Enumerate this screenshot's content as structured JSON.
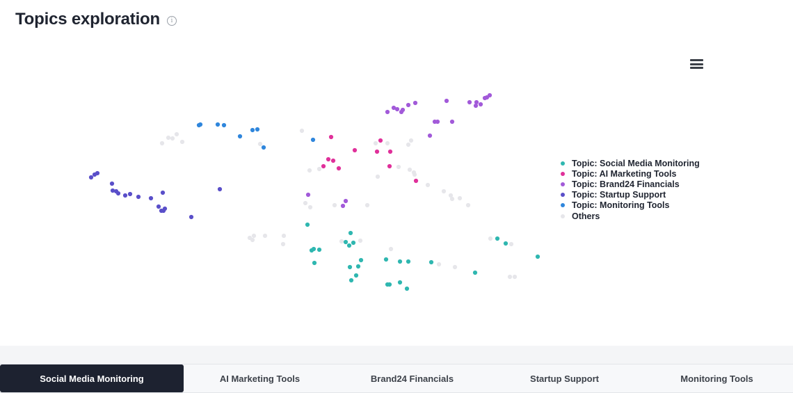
{
  "header": {
    "title": "Topics exploration",
    "info_icon": "info-icon"
  },
  "toolbar": {
    "menu_icon": "hamburger-menu-icon"
  },
  "tabs": [
    {
      "label": "Social Media Monitoring",
      "active": true
    },
    {
      "label": "AI Marketing Tools",
      "active": false
    },
    {
      "label": "Brand24 Financials",
      "active": false
    },
    {
      "label": "Startup Support",
      "active": false
    },
    {
      "label": "Monitoring Tools",
      "active": false
    }
  ],
  "chart_data": {
    "type": "scatter",
    "title": "",
    "xlabel": "",
    "ylabel": "",
    "grid": false,
    "axes_visible": false,
    "legend_position": "right",
    "series": [
      {
        "name": "Topic: Social Media Monitoring",
        "color": "#2fb7b0",
        "points": [
          [
            442,
            323
          ],
          [
            451,
            358
          ],
          [
            459,
            359
          ],
          [
            448,
            360
          ],
          [
            452,
            378
          ],
          [
            497,
            348
          ],
          [
            504,
            335
          ],
          [
            502,
            353
          ],
          [
            508,
            349
          ],
          [
            519,
            374
          ],
          [
            515,
            383
          ],
          [
            503,
            384
          ],
          [
            512,
            396
          ],
          [
            505,
            403
          ],
          [
            555,
            373
          ],
          [
            575,
            376
          ],
          [
            587,
            376
          ],
          [
            620,
            377
          ],
          [
            557,
            409
          ],
          [
            560,
            409
          ],
          [
            575,
            406
          ],
          [
            585,
            415
          ],
          [
            683,
            392
          ],
          [
            715,
            343
          ],
          [
            727,
            350
          ],
          [
            773,
            369
          ]
        ]
      },
      {
        "name": "Topic: AI Marketing Tools",
        "color": "#e0309a",
        "points": [
          [
            476,
            197
          ],
          [
            510,
            216
          ],
          [
            472,
            229
          ],
          [
            479,
            231
          ],
          [
            465,
            239
          ],
          [
            487,
            242
          ],
          [
            542,
            218
          ],
          [
            547,
            202
          ],
          [
            561,
            218
          ],
          [
            560,
            239
          ],
          [
            598,
            260
          ]
        ]
      },
      {
        "name": "Topic: Brand24 Financials",
        "color": "#a25ad9",
        "points": [
          [
            557,
            161
          ],
          [
            566,
            155
          ],
          [
            571,
            157
          ],
          [
            577,
            161
          ],
          [
            579,
            158
          ],
          [
            587,
            151
          ],
          [
            597,
            148
          ],
          [
            642,
            145
          ],
          [
            675,
            147
          ],
          [
            685,
            147
          ],
          [
            684,
            152
          ],
          [
            691,
            150
          ],
          [
            697,
            141
          ],
          [
            700,
            140
          ],
          [
            704,
            137
          ],
          [
            625,
            175
          ],
          [
            629,
            175
          ],
          [
            650,
            175
          ],
          [
            618,
            195
          ],
          [
            443,
            280
          ],
          [
            497,
            289
          ],
          [
            493,
            296
          ]
        ]
      },
      {
        "name": "Topic: Startup Support",
        "color": "#5a4fc9",
        "points": [
          [
            131,
            255
          ],
          [
            136,
            251
          ],
          [
            140,
            249
          ],
          [
            161,
            264
          ],
          [
            162,
            274
          ],
          [
            167,
            275
          ],
          [
            170,
            278
          ],
          [
            180,
            281
          ],
          [
            187,
            279
          ],
          [
            199,
            283
          ],
          [
            217,
            285
          ],
          [
            234,
            277
          ],
          [
            228,
            297
          ],
          [
            232,
            303
          ],
          [
            235,
            303
          ],
          [
            237,
            300
          ],
          [
            275,
            312
          ],
          [
            316,
            272
          ]
        ]
      },
      {
        "name": "Topic: Monitoring Tools",
        "color": "#2f86dc",
        "points": [
          [
            286,
            180
          ],
          [
            288,
            179
          ],
          [
            313,
            179
          ],
          [
            322,
            180
          ],
          [
            345,
            196
          ],
          [
            363,
            187
          ],
          [
            370,
            186
          ],
          [
            379,
            212
          ],
          [
            450,
            201
          ]
        ]
      },
      {
        "name": "Others",
        "color": "#e6e6ea",
        "points": [
          [
            233,
            206
          ],
          [
            242,
            198
          ],
          [
            248,
            199
          ],
          [
            254,
            193
          ],
          [
            262,
            204
          ],
          [
            374,
            207
          ],
          [
            434,
            188
          ],
          [
            445,
            245
          ],
          [
            459,
            243
          ],
          [
            439,
            292
          ],
          [
            446,
            298
          ],
          [
            481,
            295
          ],
          [
            528,
            295
          ],
          [
            540,
            206
          ],
          [
            557,
            206
          ],
          [
            587,
            208
          ],
          [
            591,
            202
          ],
          [
            543,
            254
          ],
          [
            573,
            240
          ],
          [
            589,
            244
          ],
          [
            595,
            248
          ],
          [
            596,
            251
          ],
          [
            615,
            266
          ],
          [
            638,
            275
          ],
          [
            648,
            281
          ],
          [
            650,
            286
          ],
          [
            661,
            285
          ],
          [
            673,
            295
          ],
          [
            359,
            342
          ],
          [
            363,
            345
          ],
          [
            365,
            339
          ],
          [
            381,
            339
          ],
          [
            408,
            339
          ],
          [
            407,
            351
          ],
          [
            491,
            347
          ],
          [
            518,
            346
          ],
          [
            562,
            358
          ],
          [
            631,
            380
          ],
          [
            654,
            384
          ],
          [
            705,
            343
          ],
          [
            735,
            351
          ],
          [
            733,
            398
          ],
          [
            740,
            398
          ]
        ]
      }
    ],
    "legend": [
      "Topic: Social Media Monitoring",
      "Topic: AI Marketing Tools",
      "Topic: Brand24 Financials",
      "Topic: Startup Support",
      "Topic: Monitoring Tools",
      "Others"
    ]
  }
}
